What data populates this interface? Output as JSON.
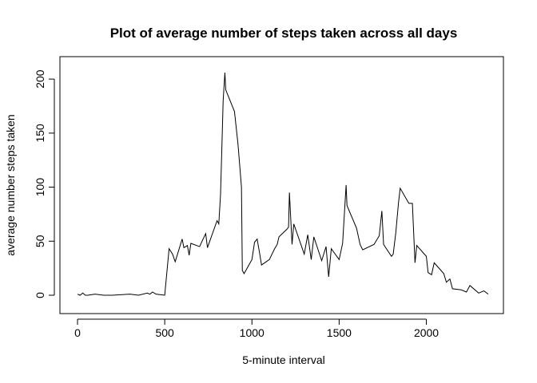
{
  "chart_data": {
    "type": "line",
    "title": "Plot of average number of steps taken across all days",
    "xlabel": "5-minute interval",
    "ylabel": "average number steps taken",
    "xlim": [
      0,
      2355
    ],
    "ylim": [
      0,
      206
    ],
    "x_ticks": [
      0,
      500,
      1000,
      1500,
      2000
    ],
    "y_ticks": [
      0,
      50,
      100,
      150,
      200
    ],
    "grid": false,
    "color": "#000000",
    "series": [
      {
        "x": [
          0,
          15,
          30,
          45,
          60,
          100,
          150,
          200,
          300,
          350,
          400,
          415,
          430,
          450,
          500,
          525,
          545,
          560,
          600,
          610,
          630,
          640,
          650,
          700,
          720,
          735,
          745,
          800,
          810,
          820,
          830,
          835,
          845,
          850,
          900,
          920,
          940,
          945,
          955,
          1000,
          1015,
          1030,
          1045,
          1055,
          1100,
          1130,
          1145,
          1155,
          1200,
          1210,
          1215,
          1230,
          1240,
          1300,
          1320,
          1340,
          1355,
          1400,
          1425,
          1440,
          1455,
          1500,
          1520,
          1540,
          1545,
          1600,
          1620,
          1635,
          1700,
          1730,
          1745,
          1755,
          1800,
          1810,
          1825,
          1840,
          1850,
          1900,
          1920,
          1935,
          1945,
          2000,
          2010,
          2030,
          2045,
          2100,
          2115,
          2135,
          2150,
          2200,
          2230,
          2250,
          2300,
          2330,
          2355
        ],
        "y": [
          1,
          0,
          2,
          0,
          0,
          1,
          0,
          0,
          1,
          0,
          2,
          1,
          3,
          1,
          0,
          43,
          38,
          31,
          52,
          44,
          46,
          37,
          48,
          45,
          52,
          57,
          44,
          69,
          66,
          93,
          150,
          180,
          206,
          190,
          170,
          140,
          100,
          23,
          20,
          33,
          49,
          52,
          38,
          28,
          33,
          43,
          47,
          54,
          61,
          63,
          95,
          47,
          66,
          38,
          56,
          33,
          54,
          32,
          45,
          17,
          43,
          33,
          48,
          102,
          83,
          62,
          47,
          42,
          47,
          55,
          78,
          47,
          36,
          38,
          58,
          85,
          99,
          85,
          85,
          30,
          46,
          36,
          21,
          19,
          30,
          20,
          12,
          15,
          6,
          5,
          3,
          9,
          2,
          4,
          1
        ]
      }
    ]
  }
}
